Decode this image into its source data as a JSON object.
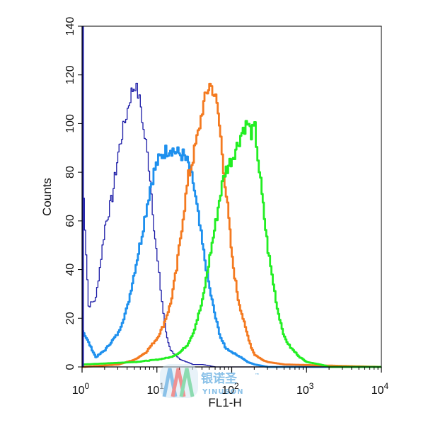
{
  "chart_data": {
    "type": "line",
    "xlabel": "FL1-H",
    "ylabel": "Counts",
    "x_scale": "log",
    "xlim": [
      1,
      10000
    ],
    "ylim": [
      0,
      140
    ],
    "x_ticks": [
      {
        "value": 1,
        "base": "10",
        "exp": "0"
      },
      {
        "value": 10,
        "base": "10",
        "exp": "1"
      },
      {
        "value": 100,
        "base": "10",
        "exp": "2"
      },
      {
        "value": 1000,
        "base": "10",
        "exp": "3"
      },
      {
        "value": 10000,
        "base": "10",
        "exp": "4"
      }
    ],
    "y_ticks": [
      0,
      20,
      40,
      60,
      80,
      100,
      120,
      140
    ],
    "grid": false,
    "legend": "none",
    "series": [
      {
        "color": "#1a1aa6",
        "x": [
          1.0,
          1.2,
          1.5,
          2.0,
          2.5,
          3.0,
          3.5,
          4.0,
          4.5,
          5.0,
          5.5,
          6.0,
          6.5,
          7.0,
          8.0,
          9.0,
          10.0,
          11.0,
          12.0,
          13.0,
          14.0,
          15.0,
          17.0,
          20.0,
          25.0,
          30.0,
          40.0,
          60.0,
          100.0,
          1000.0,
          10000.0
        ],
        "y": [
          80,
          25,
          28,
          58,
          70,
          88,
          98,
          106,
          113,
          116,
          112,
          107,
          97,
          92,
          78,
          58,
          43,
          32,
          22,
          14,
          10,
          7,
          5,
          3,
          2,
          1,
          1,
          0,
          0,
          0,
          0
        ]
      },
      {
        "color": "#1e90ee",
        "x": [
          1.0,
          1.5,
          2.0,
          3.0,
          4.0,
          5.0,
          6.0,
          7.0,
          8.0,
          9.0,
          10.0,
          12.0,
          15.0,
          18.0,
          22.0,
          26.0,
          30.0,
          35.0,
          40.0,
          50.0,
          60.0,
          70.0,
          80.0,
          100.0,
          130.0,
          160.0,
          200.0,
          300.0,
          1000.0,
          10000.0
        ],
        "y": [
          15,
          4,
          7,
          14,
          25,
          40,
          52,
          64,
          74,
          80,
          84,
          88,
          90,
          88,
          87,
          83,
          76,
          62,
          50,
          32,
          20,
          12,
          8,
          6,
          4,
          2,
          1,
          0,
          0,
          0
        ]
      },
      {
        "color": "#f47a20",
        "x": [
          1.0,
          3.0,
          5.0,
          7.0,
          10.0,
          12.0,
          15.0,
          18.0,
          22.0,
          26.0,
          30.0,
          35.0,
          40.0,
          45.0,
          50.0,
          55.0,
          60.0,
          65.0,
          70.0,
          80.0,
          90.0,
          100.0,
          120.0,
          150.0,
          180.0,
          200.0,
          250.0,
          300.0,
          500.0,
          10000.0
        ],
        "y": [
          0,
          1,
          3,
          6,
          12,
          17,
          26,
          40,
          62,
          78,
          86,
          96,
          106,
          112,
          116,
          114,
          110,
          104,
          94,
          76,
          60,
          44,
          28,
          16,
          8,
          5,
          3,
          2,
          1,
          0
        ]
      },
      {
        "color": "#22ee22",
        "x": [
          1.0,
          5.0,
          10.0,
          15.0,
          20.0,
          25.0,
          30.0,
          40.0,
          50.0,
          60.0,
          70.0,
          80.0,
          100.0,
          120.0,
          140.0,
          160.0,
          180.0,
          200.0,
          220.0,
          250.0,
          300.0,
          400.0,
          500.0,
          600.0,
          800.0,
          1000.0,
          1500.0,
          2000.0,
          3000.0,
          10000.0
        ],
        "y": [
          1,
          2,
          3,
          4,
          6,
          9,
          14,
          27,
          45,
          59,
          72,
          80,
          86,
          92,
          98,
          100,
          96,
          98,
          86,
          70,
          48,
          24,
          12,
          8,
          4,
          2,
          1,
          0,
          0,
          0
        ]
      }
    ]
  },
  "watermark": {
    "line1": "银诺圣",
    "line2": "YINUSON",
    "tm": "™"
  }
}
